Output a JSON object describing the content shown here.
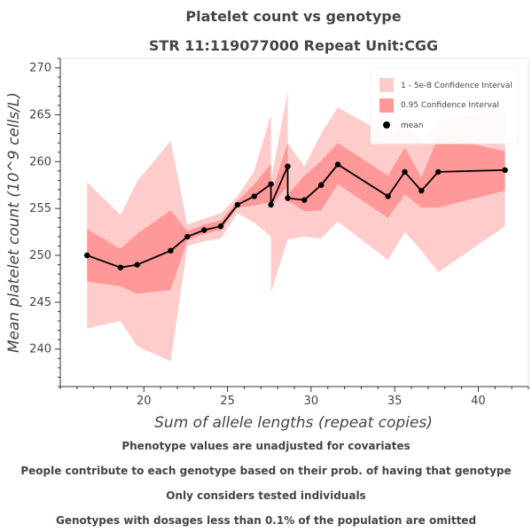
{
  "chart_data": {
    "type": "line",
    "title": "Platelet count vs genotype",
    "subtitle": "STR 11:119077000 Repeat Unit:CGG",
    "xlabel": "Sum of allele lengths (repeat copies)",
    "ylabel": "Mean platelet count (10^9 cells/L)",
    "xlim": [
      15,
      43
    ],
    "ylim": [
      236,
      271
    ],
    "xticks": [
      20,
      25,
      30,
      35,
      40
    ],
    "yticks": [
      240,
      245,
      250,
      255,
      260,
      265,
      270
    ],
    "legend_position": "top-right",
    "series": [
      {
        "name": "1 - 5e-8 Confidence Interval",
        "type": "band",
        "color": "#ffcccc",
        "x": [
          16.6,
          18.6,
          19.6,
          21.6,
          22.6,
          23.6,
          24.6,
          25.6,
          26.6,
          27.6,
          27.6,
          28.6,
          28.6,
          29.6,
          30.6,
          31.6,
          34.6,
          35.6,
          36.6,
          37.6,
          41.6
        ],
        "lower": [
          242.2,
          243.0,
          240.3,
          238.7,
          251.0,
          251.5,
          251.8,
          254.5,
          253.5,
          252.0,
          246.0,
          251.7,
          251.7,
          252.0,
          251.8,
          253.6,
          249.5,
          252.5,
          250.5,
          248.2,
          253.1
        ],
        "upper": [
          257.8,
          254.3,
          257.9,
          262.2,
          253.3,
          253.9,
          254.5,
          256.3,
          259.0,
          265.0,
          258.0,
          267.5,
          262.0,
          259.5,
          263.0,
          265.8,
          262.8,
          264.5,
          262.0,
          264.5,
          265.5
        ]
      },
      {
        "name": "0.95 Confidence Interval",
        "type": "band",
        "color": "#ff9999",
        "x": [
          16.6,
          18.6,
          19.6,
          21.6,
          22.6,
          23.6,
          24.6,
          25.6,
          26.6,
          27.6,
          27.6,
          28.6,
          28.6,
          29.6,
          30.6,
          31.6,
          34.6,
          35.6,
          36.6,
          37.6,
          41.6
        ],
        "lower": [
          247.2,
          246.7,
          245.9,
          246.3,
          251.6,
          252.3,
          252.7,
          255.1,
          255.3,
          255.7,
          255.1,
          257.5,
          255.8,
          254.7,
          254.8,
          257.6,
          254.0,
          256.5,
          255.1,
          255.1,
          256.9
        ],
        "upper": [
          252.8,
          250.7,
          252.3,
          254.8,
          252.6,
          253.3,
          253.7,
          255.8,
          257.6,
          259.8,
          256.5,
          262.0,
          256.5,
          258.5,
          260.1,
          262.0,
          258.5,
          261.5,
          258.3,
          262.7,
          261.1
        ]
      },
      {
        "name": "mean",
        "type": "line-markers",
        "color": "#000000",
        "x": [
          16.6,
          18.6,
          19.6,
          21.6,
          22.6,
          23.6,
          24.6,
          25.6,
          26.6,
          27.6,
          27.6,
          28.6,
          28.6,
          29.6,
          30.6,
          31.6,
          34.6,
          35.6,
          36.6,
          37.6,
          41.6
        ],
        "y": [
          250.0,
          248.7,
          249.0,
          250.5,
          252.0,
          252.7,
          253.1,
          255.4,
          256.3,
          257.6,
          255.4,
          259.5,
          256.1,
          255.9,
          257.5,
          259.7,
          256.3,
          258.9,
          256.9,
          258.9,
          259.1
        ]
      }
    ]
  },
  "footnotes": [
    "Phenotype values are unadjusted for covariates",
    "People contribute to each genotype based on their prob. of having that genotype",
    "Only considers tested individuals",
    "Genotypes with dosages less than 0.1% of the population are omitted"
  ]
}
